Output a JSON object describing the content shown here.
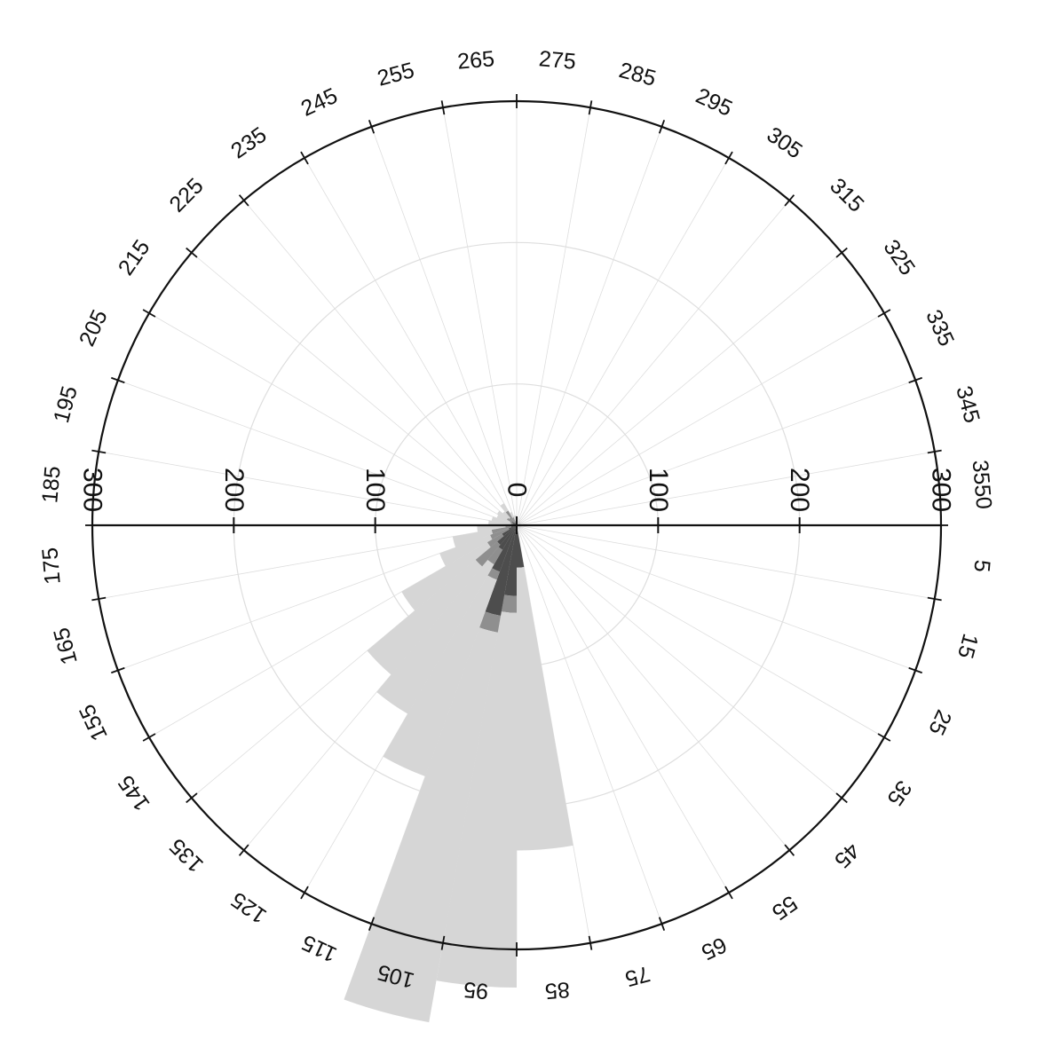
{
  "chart_data": {
    "type": "polar-histogram",
    "title": "",
    "radial_ticks": [
      "0",
      "100",
      "200",
      "300"
    ],
    "radial_max": 300,
    "angular_tick_labels": [
      "5",
      "15",
      "25",
      "35",
      "45",
      "55",
      "65",
      "75",
      "85",
      "95",
      "105",
      "115",
      "125",
      "135",
      "145",
      "155",
      "165",
      "175",
      "185",
      "195",
      "205",
      "215",
      "225",
      "235",
      "245",
      "255",
      "265",
      "275",
      "285",
      "295",
      "305",
      "315",
      "325",
      "335",
      "345",
      "3550"
    ],
    "bins_deg": [
      85,
      95,
      105,
      115,
      125,
      135,
      145,
      155,
      165,
      175,
      185,
      195,
      205,
      215,
      225,
      235,
      245,
      255,
      265,
      275,
      285,
      295,
      305,
      315,
      325,
      335,
      345,
      355,
      5,
      15,
      25,
      35,
      45,
      55,
      65,
      75
    ],
    "bin_width_deg": 10,
    "series": [
      {
        "values": [
          30,
          50,
          65,
          35,
          20,
          18,
          12,
          6,
          4,
          2,
          2,
          2,
          3,
          4,
          3,
          2,
          2,
          1,
          1,
          1,
          0,
          0,
          0,
          0,
          0,
          0,
          0,
          0,
          0,
          0,
          0,
          0,
          0,
          0,
          0,
          0
        ]
      },
      {
        "values": [
          0,
          12,
          12,
          6,
          12,
          20,
          12,
          14,
          14,
          6,
          2,
          2,
          2,
          4,
          4,
          10,
          4,
          2,
          2,
          0,
          0,
          0,
          0,
          0,
          0,
          0,
          0,
          0,
          0,
          0,
          0,
          0,
          0,
          0,
          0,
          0
        ]
      },
      {
        "values": [
          200,
          265,
          280,
          148,
          122,
          100,
          70,
          38,
          28,
          20,
          16,
          14,
          10,
          8,
          6,
          6,
          4,
          4,
          4,
          4,
          3,
          3,
          3,
          3,
          3,
          3,
          3,
          3,
          3,
          3,
          3,
          3,
          3,
          3,
          3,
          3
        ]
      }
    ],
    "colors": {
      "series": [
        "#4d4d4d",
        "#8f8f8f",
        "#d6d6d6"
      ],
      "frame": "#111111",
      "grid": "#dedede"
    }
  }
}
